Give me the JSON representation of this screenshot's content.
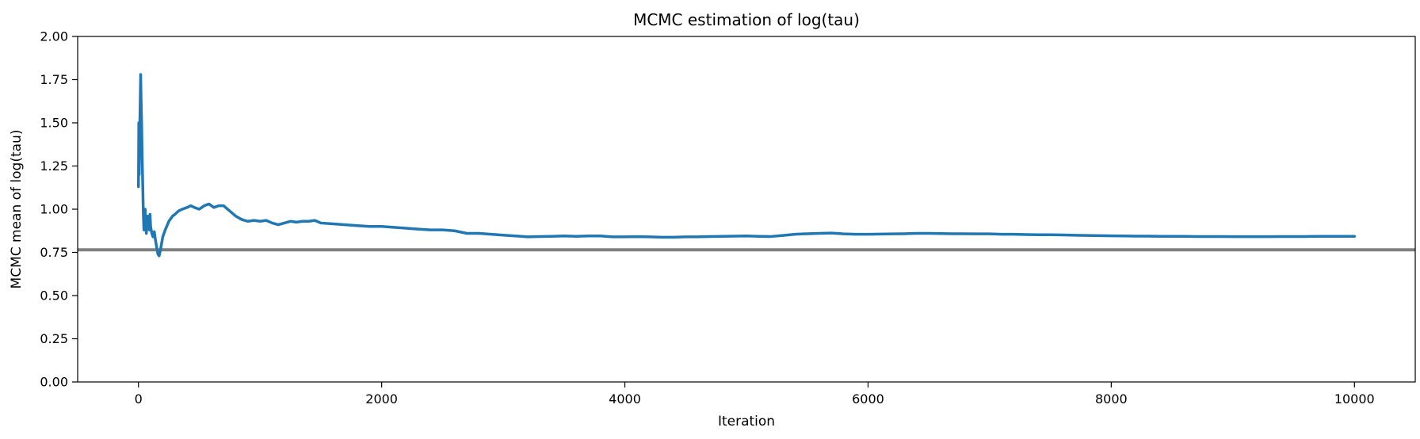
{
  "chart_data": {
    "type": "line",
    "title": "MCMC estimation of log(tau)",
    "xlabel": "Iteration",
    "ylabel": "MCMC mean of log(tau)",
    "xlim": [
      -500,
      10500
    ],
    "ylim": [
      0,
      2
    ],
    "x_ticks": [
      0,
      2000,
      4000,
      6000,
      8000,
      10000
    ],
    "x_tick_labels": [
      "0",
      "2000",
      "4000",
      "6000",
      "8000",
      "10000"
    ],
    "y_ticks": [
      0,
      0.25,
      0.5,
      0.75,
      1.0,
      1.25,
      1.5,
      1.75,
      2.0
    ],
    "y_tick_labels": [
      "0.00",
      "0.25",
      "0.50",
      "0.75",
      "1.00",
      "1.25",
      "1.50",
      "1.75",
      "2.00"
    ],
    "grid": false,
    "legend": "none",
    "reference_line": {
      "y": 0.765,
      "color": "#808080"
    },
    "series": [
      {
        "color": "#1f77b4",
        "points": [
          [
            0,
            1.13
          ],
          [
            3,
            1.5
          ],
          [
            6,
            1.2
          ],
          [
            10,
            1.45
          ],
          [
            14,
            1.6
          ],
          [
            18,
            1.78
          ],
          [
            22,
            1.62
          ],
          [
            26,
            1.5
          ],
          [
            30,
            1.32
          ],
          [
            35,
            1.15
          ],
          [
            40,
            0.98
          ],
          [
            45,
            0.88
          ],
          [
            50,
            0.94
          ],
          [
            55,
            1.0
          ],
          [
            60,
            0.9
          ],
          [
            65,
            0.86
          ],
          [
            70,
            0.92
          ],
          [
            75,
            0.96
          ],
          [
            80,
            0.9
          ],
          [
            85,
            0.95
          ],
          [
            90,
            0.88
          ],
          [
            95,
            0.97
          ],
          [
            100,
            0.9
          ],
          [
            110,
            0.86
          ],
          [
            120,
            0.84
          ],
          [
            130,
            0.87
          ],
          [
            140,
            0.82
          ],
          [
            150,
            0.78
          ],
          [
            160,
            0.74
          ],
          [
            170,
            0.73
          ],
          [
            180,
            0.76
          ],
          [
            190,
            0.8
          ],
          [
            200,
            0.84
          ],
          [
            220,
            0.88
          ],
          [
            250,
            0.93
          ],
          [
            280,
            0.96
          ],
          [
            300,
            0.97
          ],
          [
            330,
            0.99
          ],
          [
            360,
            1.0
          ],
          [
            400,
            1.01
          ],
          [
            430,
            1.02
          ],
          [
            460,
            1.01
          ],
          [
            500,
            1.0
          ],
          [
            540,
            1.02
          ],
          [
            580,
            1.03
          ],
          [
            620,
            1.01
          ],
          [
            660,
            1.02
          ],
          [
            700,
            1.02
          ],
          [
            750,
            0.99
          ],
          [
            800,
            0.96
          ],
          [
            850,
            0.94
          ],
          [
            900,
            0.93
          ],
          [
            950,
            0.935
          ],
          [
            1000,
            0.93
          ],
          [
            1050,
            0.935
          ],
          [
            1100,
            0.92
          ],
          [
            1150,
            0.91
          ],
          [
            1200,
            0.92
          ],
          [
            1250,
            0.93
          ],
          [
            1300,
            0.925
          ],
          [
            1350,
            0.93
          ],
          [
            1400,
            0.93
          ],
          [
            1450,
            0.935
          ],
          [
            1500,
            0.92
          ],
          [
            1600,
            0.915
          ],
          [
            1700,
            0.91
          ],
          [
            1800,
            0.905
          ],
          [
            1900,
            0.9
          ],
          [
            2000,
            0.9
          ],
          [
            2100,
            0.895
          ],
          [
            2200,
            0.89
          ],
          [
            2300,
            0.885
          ],
          [
            2400,
            0.88
          ],
          [
            2500,
            0.88
          ],
          [
            2600,
            0.875
          ],
          [
            2700,
            0.86
          ],
          [
            2800,
            0.86
          ],
          [
            2900,
            0.855
          ],
          [
            3000,
            0.85
          ],
          [
            3100,
            0.845
          ],
          [
            3200,
            0.84
          ],
          [
            3300,
            0.842
          ],
          [
            3400,
            0.843
          ],
          [
            3500,
            0.845
          ],
          [
            3600,
            0.843
          ],
          [
            3700,
            0.845
          ],
          [
            3800,
            0.845
          ],
          [
            3900,
            0.84
          ],
          [
            4000,
            0.84
          ],
          [
            4100,
            0.841
          ],
          [
            4200,
            0.84
          ],
          [
            4300,
            0.838
          ],
          [
            4400,
            0.838
          ],
          [
            4500,
            0.84
          ],
          [
            4600,
            0.84
          ],
          [
            4700,
            0.842
          ],
          [
            4800,
            0.843
          ],
          [
            4900,
            0.844
          ],
          [
            5000,
            0.845
          ],
          [
            5100,
            0.843
          ],
          [
            5200,
            0.842
          ],
          [
            5300,
            0.848
          ],
          [
            5400,
            0.855
          ],
          [
            5500,
            0.858
          ],
          [
            5600,
            0.86
          ],
          [
            5700,
            0.862
          ],
          [
            5800,
            0.857
          ],
          [
            5900,
            0.855
          ],
          [
            6000,
            0.855
          ],
          [
            6100,
            0.856
          ],
          [
            6200,
            0.857
          ],
          [
            6300,
            0.858
          ],
          [
            6400,
            0.86
          ],
          [
            6500,
            0.86
          ],
          [
            6600,
            0.859
          ],
          [
            6700,
            0.858
          ],
          [
            6800,
            0.858
          ],
          [
            6900,
            0.857
          ],
          [
            7000,
            0.857
          ],
          [
            7100,
            0.855
          ],
          [
            7200,
            0.855
          ],
          [
            7300,
            0.853
          ],
          [
            7400,
            0.852
          ],
          [
            7500,
            0.852
          ],
          [
            7600,
            0.851
          ],
          [
            7700,
            0.849
          ],
          [
            7800,
            0.848
          ],
          [
            7900,
            0.847
          ],
          [
            8000,
            0.846
          ],
          [
            8100,
            0.845
          ],
          [
            8200,
            0.844
          ],
          [
            8300,
            0.844
          ],
          [
            8400,
            0.843
          ],
          [
            8500,
            0.843
          ],
          [
            8600,
            0.843
          ],
          [
            8700,
            0.842
          ],
          [
            8800,
            0.842
          ],
          [
            8900,
            0.842
          ],
          [
            9000,
            0.841
          ],
          [
            9100,
            0.841
          ],
          [
            9200,
            0.841
          ],
          [
            9300,
            0.841
          ],
          [
            9400,
            0.842
          ],
          [
            9500,
            0.842
          ],
          [
            9600,
            0.842
          ],
          [
            9700,
            0.843
          ],
          [
            9800,
            0.843
          ],
          [
            9900,
            0.843
          ],
          [
            10000,
            0.843
          ]
        ]
      }
    ]
  }
}
